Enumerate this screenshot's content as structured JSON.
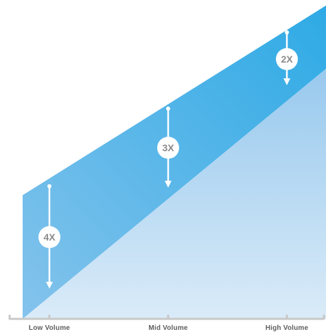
{
  "chart_data": {
    "type": "area",
    "title": "",
    "xlabel": "",
    "ylabel": "",
    "categories": [
      "Low Volume",
      "Mid Volume",
      "High Volume"
    ],
    "series": [
      {
        "upper": [
          4,
          2.7,
          1.75
        ],
        "lower": [
          0,
          0.9,
          1.75
        ]
      },
      {
        "upper": [
          1.75,
          1.8,
          1.4
        ],
        "lower": [
          0,
          0,
          0
        ]
      }
    ],
    "multipliers": [
      {
        "category": "Low Volume",
        "label": "4X",
        "from": 3.4,
        "to": 0.85
      },
      {
        "category": "Mid Volume",
        "label": "3X",
        "from": 5,
        "to": 3.05
      },
      {
        "category": "High Volume",
        "label": "2X",
        "from": 6.3,
        "to": 5.4
      }
    ],
    "colors": {
      "upper_band_light": "#84c3ec",
      "upper_band_dark": "#2eaae5",
      "lower_band_top": "#98c9ee",
      "lower_band_bottom": "#daebf8",
      "marker_text": "#8a8a8a",
      "axis": "#c8c8c8",
      "tick_label": "#5e5e5e"
    }
  }
}
